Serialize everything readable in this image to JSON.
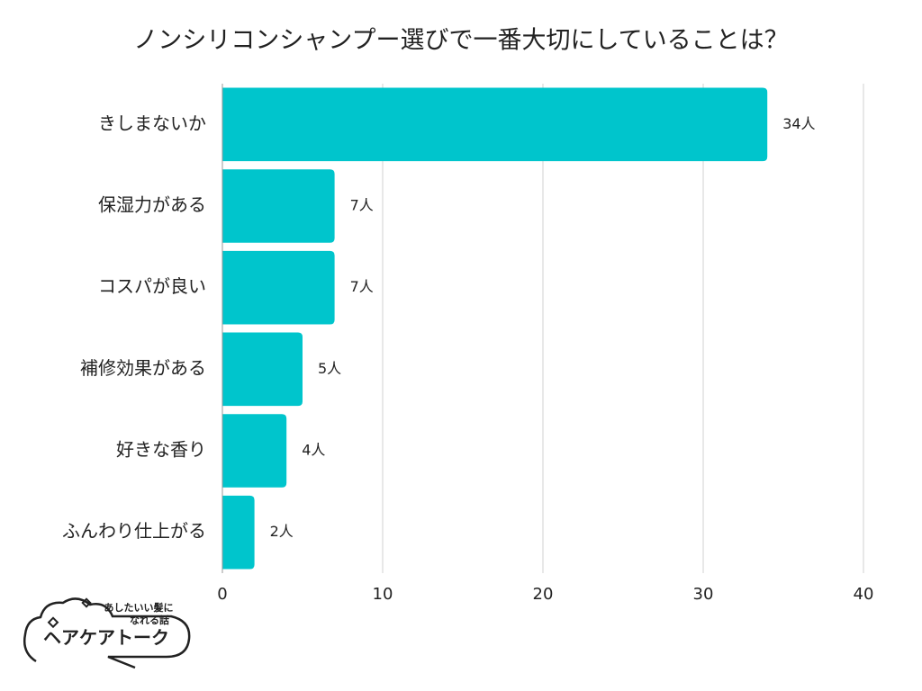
{
  "chart_data": {
    "type": "hbar",
    "title": "ノンシリコンシャンプー選びで一番大切にしていることは？",
    "categories": [
      "きしまないか",
      "保湿力がある",
      "コスパが良い",
      "補修効果がある",
      "好きな香り",
      "ふんわり仕上がる"
    ],
    "values": [
      34,
      7,
      7,
      5,
      4,
      2
    ],
    "value_labels": [
      "34人",
      "7人",
      "7人",
      "5人",
      "4人",
      "2人"
    ],
    "color": "#00c5cc",
    "xlim": [
      0,
      40
    ],
    "xticks": [
      0,
      10,
      20,
      30,
      40
    ],
    "grid": true
  },
  "logo": {
    "tagline": [
      "あしたいい髪に",
      "なれる話"
    ],
    "name": "ヘアケアトーク"
  }
}
